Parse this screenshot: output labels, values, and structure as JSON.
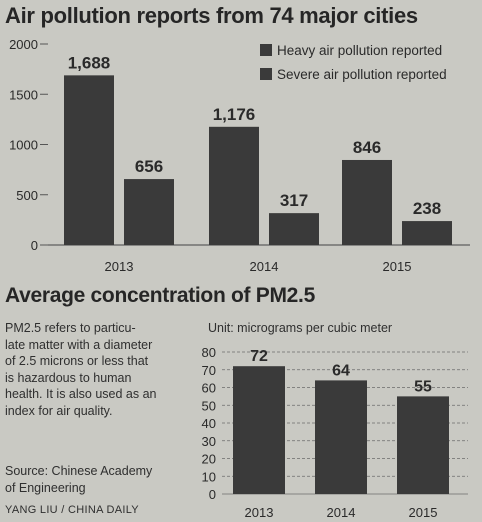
{
  "title_top": "Air pollution reports from 74 major cities",
  "title_bottom": "Average concentration of PM2.5",
  "description_lines": [
    "PM2.5 refers to particu-",
    "late matter with a diameter",
    "of 2.5 microns or less that",
    "is hazardous to human",
    "health. It is also used as an",
    "index for air quality."
  ],
  "source_lines": [
    "Source: Chinese Academy",
    "of Engineering"
  ],
  "credit": "YANG LIU / CHINA DAILY",
  "unit_label": "Unit: micrograms per cubic meter",
  "colors": {
    "bar": "#3a3a3a",
    "background": "#c9c9c3",
    "axis_text": "#2a2a2a"
  },
  "chart_data": [
    {
      "type": "bar",
      "title": "Air pollution reports from 74 major cities",
      "categories": [
        "2013",
        "2014",
        "2015"
      ],
      "series": [
        {
          "name": "Heavy air pollution reported",
          "values": [
            1688,
            1176,
            846
          ],
          "labels": [
            "1,688",
            "1,176",
            "846"
          ]
        },
        {
          "name": "Severe air pollution reported",
          "values": [
            656,
            317,
            238
          ],
          "labels": [
            "656",
            "317",
            "238"
          ]
        }
      ],
      "yticks": [
        0,
        500,
        1000,
        1500,
        2000
      ],
      "ytick_labels": [
        "0",
        "500",
        "1000",
        "1500",
        "2000"
      ],
      "ylim": [
        0,
        2000
      ],
      "legend_position": "top-right",
      "grid": false
    },
    {
      "type": "bar",
      "title": "Average concentration of PM2.5",
      "categories": [
        "2013",
        "2014",
        "2015"
      ],
      "values": [
        72,
        64,
        55
      ],
      "labels": [
        "72",
        "64",
        "55"
      ],
      "yticks": [
        0,
        10,
        20,
        30,
        40,
        50,
        60,
        70,
        80
      ],
      "ytick_labels": [
        "0",
        "10",
        "20",
        "30",
        "40",
        "50",
        "60",
        "70",
        "80"
      ],
      "ylim": [
        0,
        80
      ],
      "ylabel": "Unit: micrograms per cubic meter",
      "grid": true
    }
  ]
}
